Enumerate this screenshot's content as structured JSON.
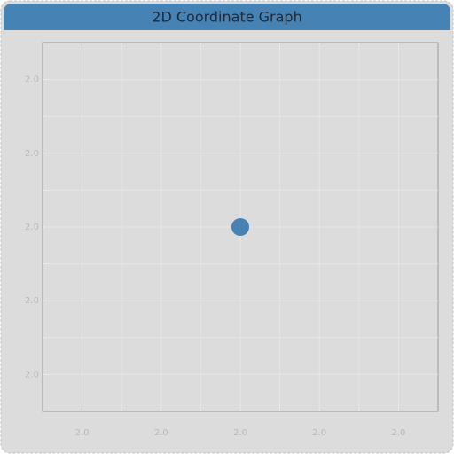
{
  "chart_data": {
    "type": "scatter",
    "title": "2D Coordinate Graph",
    "series": [
      {
        "color": "#4682b4",
        "x": [
          2.0
        ],
        "values": [
          2.0
        ]
      }
    ],
    "xlim": [
      1.95,
      2.05
    ],
    "xticks": [
      {
        "value": 1.96,
        "label": "2.0"
      },
      {
        "value": 1.98,
        "label": "2.0"
      },
      {
        "value": 2.0,
        "label": "2.0"
      },
      {
        "value": 2.02,
        "label": "2.0"
      },
      {
        "value": 2.04,
        "label": "2.0"
      }
    ],
    "xminorticks": [
      1.97,
      1.99,
      2.01,
      2.03
    ],
    "ylim": [
      1.95,
      2.05
    ],
    "yticks": [
      {
        "value": 2.04,
        "label": "2.0"
      },
      {
        "value": 2.02,
        "label": "2.0"
      },
      {
        "value": 2.0,
        "label": "2.0"
      },
      {
        "value": 1.98,
        "label": "2.0"
      },
      {
        "value": 1.96,
        "label": "2.0"
      }
    ],
    "yminorticks": [
      2.03,
      2.01,
      1.99,
      1.97
    ],
    "grid": true
  }
}
